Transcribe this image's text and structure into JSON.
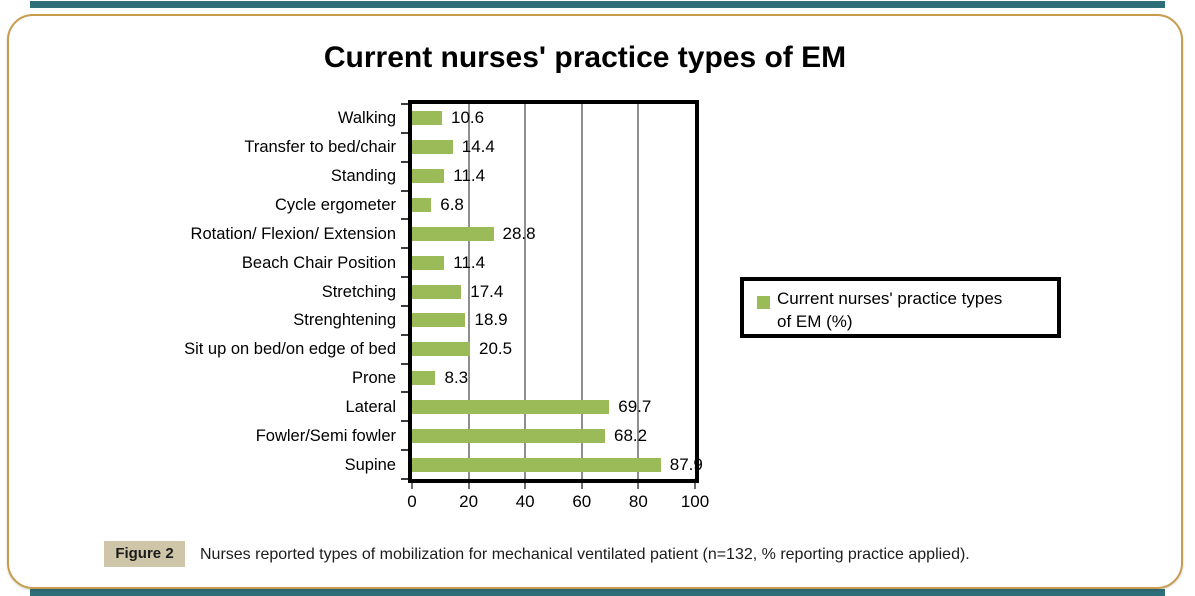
{
  "page": {
    "background": "#ffffff"
  },
  "decor": {
    "teal_bar_color": "#2d6e79",
    "frame_border_color": "#c79d4d"
  },
  "chart_data": {
    "type": "bar",
    "orientation": "horizontal",
    "title": "Current nurses' practice types of EM",
    "categories": [
      "Walking",
      "Transfer to bed/chair",
      "Standing",
      "Cycle ergometer",
      "Rotation/ Flexion/ Extension",
      "Beach Chair Position",
      "Stretching",
      "Strenghtening",
      "Sit up on bed/on edge of bed",
      "Prone",
      "Lateral",
      "Fowler/Semi fowler",
      "Supine"
    ],
    "values": [
      10.6,
      14.4,
      11.4,
      6.8,
      28.8,
      11.4,
      17.4,
      18.9,
      20.5,
      8.3,
      69.7,
      68.2,
      87.9
    ],
    "series_name": "Current nurses' practice types of EM (%)",
    "xlim": [
      0,
      100
    ],
    "x_ticks": [
      0,
      20,
      40,
      60,
      80,
      100
    ],
    "bar_color": "#9bbb59",
    "gridline_color": "#8e8e8e",
    "grid": true,
    "data_labels": true,
    "legend_position": "right"
  },
  "legend": {
    "swatch_color": "#9bbb59",
    "lines": [
      "Current nurses' practice types",
      "of EM (%)"
    ]
  },
  "caption": {
    "label": "Figure 2",
    "label_bg": "#cfc6a9",
    "text": "Nurses reported types of mobilization for mechanical ventilated patient (n=132, % reporting practice applied)."
  }
}
